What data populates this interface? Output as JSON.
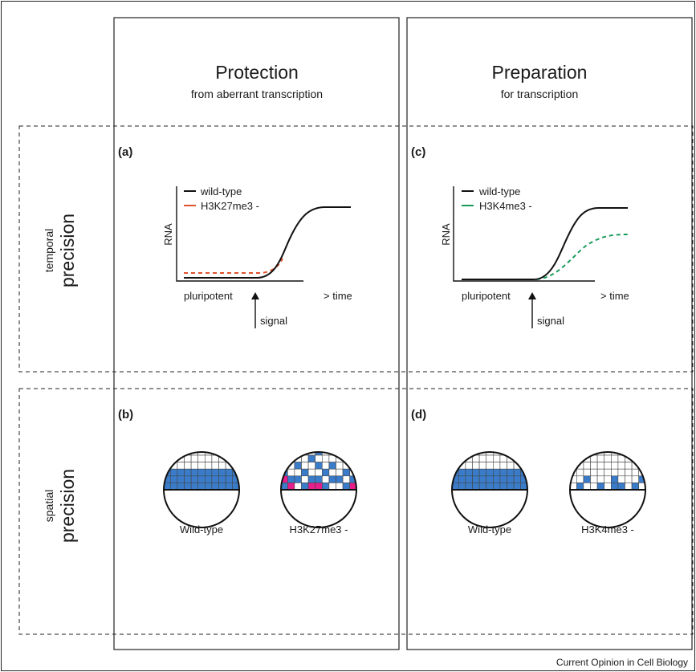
{
  "columns": [
    {
      "title": "Protection",
      "subtitle": "from aberrant transcription"
    },
    {
      "title": "Preparation",
      "subtitle": "for transcription"
    }
  ],
  "rows": [
    {
      "label_small": "temporal",
      "label_big": "precision"
    },
    {
      "label_small": "spatial",
      "label_big": "precision"
    }
  ],
  "panels": {
    "a": {
      "letter": "(a)",
      "ylabel": "RNA",
      "x_left": "pluripotent",
      "x_right": "> time",
      "signal": "signal",
      "legend": [
        {
          "label": "wild-type",
          "color": "#111111"
        },
        {
          "label": "H3K27me3 -",
          "color": "#e0522a"
        }
      ]
    },
    "c": {
      "letter": "(c)",
      "ylabel": "RNA",
      "x_left": "pluripotent",
      "x_right": "> time",
      "signal": "signal",
      "legend": [
        {
          "label": "wild-type",
          "color": "#111111"
        },
        {
          "label": "H3K4me3 -",
          "color": "#1a9a5a"
        }
      ]
    },
    "b": {
      "letter": "(b)",
      "left_label": "Wild-type",
      "right_label": "H3K27me3 -"
    },
    "d": {
      "letter": "(d)",
      "left_label": "Wild-type",
      "right_label": "H3K4me3 -"
    }
  },
  "colors": {
    "blue_cell": "#3a7cc9",
    "magenta_cell": "#e61e8c",
    "wild_type_line": "#111111",
    "k27_line": "#e0522a",
    "k4_line": "#1a9a5a"
  },
  "footer": "Current Opinion in Cell Biology"
}
